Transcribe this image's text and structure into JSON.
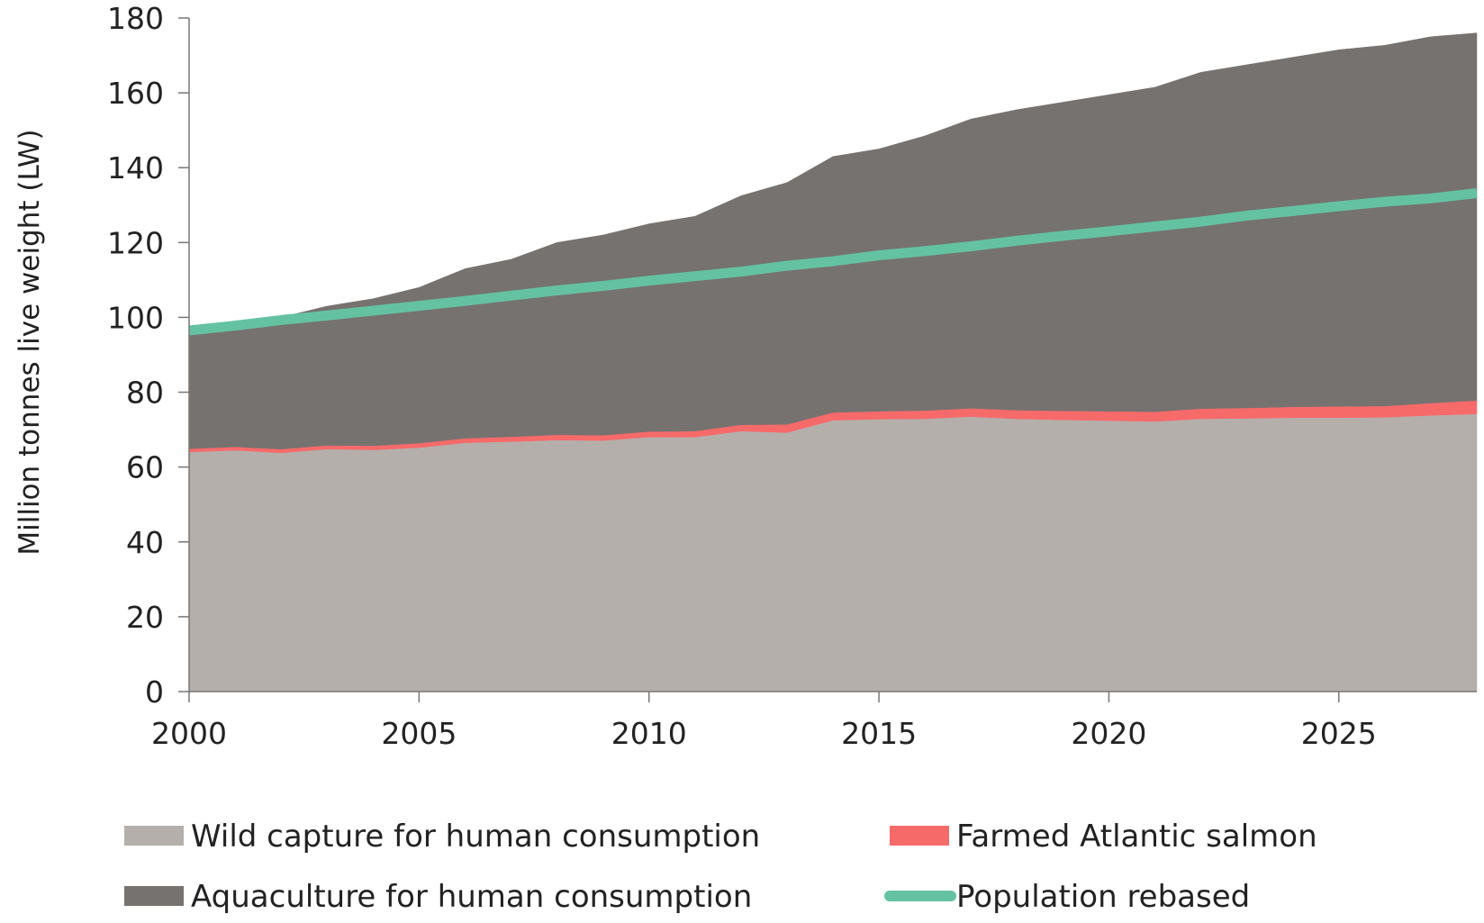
{
  "chart_data": {
    "type": "area",
    "title": "",
    "xlabel": "",
    "ylabel": "Million tonnes live weight (LW)",
    "x": [
      2000,
      2001,
      2002,
      2003,
      2004,
      2005,
      2006,
      2007,
      2008,
      2009,
      2010,
      2011,
      2012,
      2013,
      2014,
      2015,
      2016,
      2017,
      2018,
      2019,
      2020,
      2021,
      2022,
      2023,
      2024,
      2025,
      2026,
      2027,
      2028
    ],
    "xlim": [
      2000,
      2028
    ],
    "ylim": [
      0,
      180
    ],
    "xticks": [
      2000,
      2005,
      2010,
      2015,
      2020,
      2025
    ],
    "yticks": [
      0,
      20,
      40,
      60,
      80,
      100,
      120,
      140,
      160,
      180
    ],
    "grid": false,
    "legend_position": "bottom",
    "stacking": "stacked",
    "series": [
      {
        "name": "Wild capture for human consumption",
        "kind": "area",
        "color": "#b5afab",
        "values": [
          64.0,
          64.5,
          63.8,
          64.8,
          64.6,
          65.2,
          66.5,
          66.8,
          67.2,
          67.1,
          68.0,
          68.0,
          69.6,
          69.2,
          72.5,
          72.8,
          72.9,
          73.5,
          72.9,
          72.6,
          72.4,
          72.2,
          72.9,
          73.0,
          73.2,
          73.2,
          73.3,
          73.8,
          74.2
        ]
      },
      {
        "name": "Farmed Atlantic salmon",
        "kind": "area",
        "color": "#f76a6a",
        "values": [
          0.9,
          0.9,
          1.0,
          1.0,
          1.1,
          1.2,
          1.2,
          1.3,
          1.4,
          1.4,
          1.5,
          1.6,
          1.7,
          2.2,
          2.1,
          2.1,
          2.2,
          2.2,
          2.3,
          2.4,
          2.5,
          2.6,
          2.7,
          2.8,
          2.9,
          3.0,
          3.0,
          3.3,
          3.6
        ]
      },
      {
        "name": "Aquaculture for human consumption",
        "kind": "area",
        "color": "#767270",
        "values": [
          31.1,
          33.1,
          35.2,
          37.2,
          39.3,
          41.6,
          45.3,
          47.4,
          51.4,
          53.5,
          55.5,
          57.4,
          61.2,
          64.6,
          68.4,
          70.1,
          73.4,
          77.3,
          80.3,
          82.5,
          84.6,
          86.7,
          89.9,
          91.7,
          93.4,
          95.3,
          96.4,
          97.9,
          98.2
        ]
      },
      {
        "name": "Population rebased",
        "kind": "line",
        "color": "#64c2a3",
        "values": [
          96.5,
          97.8,
          99.3,
          100.5,
          101.8,
          103.1,
          104.4,
          105.8,
          107.2,
          108.4,
          109.8,
          111.0,
          112.2,
          113.8,
          115.0,
          116.6,
          117.7,
          119.0,
          120.5,
          121.8,
          123.0,
          124.3,
          125.6,
          127.2,
          128.4,
          129.7,
          130.9,
          131.8,
          133.2
        ]
      }
    ],
    "legend": [
      {
        "label": "Wild capture for human consumption",
        "color": "#b5afab",
        "kind": "area"
      },
      {
        "label": "Farmed Atlantic salmon",
        "color": "#f76a6a",
        "kind": "area"
      },
      {
        "label": "Aquaculture for human consumption",
        "color": "#767270",
        "kind": "area"
      },
      {
        "label": "Population rebased",
        "color": "#64c2a3",
        "kind": "line"
      }
    ],
    "colors": {
      "axis": "#777777",
      "text": "#222222"
    }
  }
}
